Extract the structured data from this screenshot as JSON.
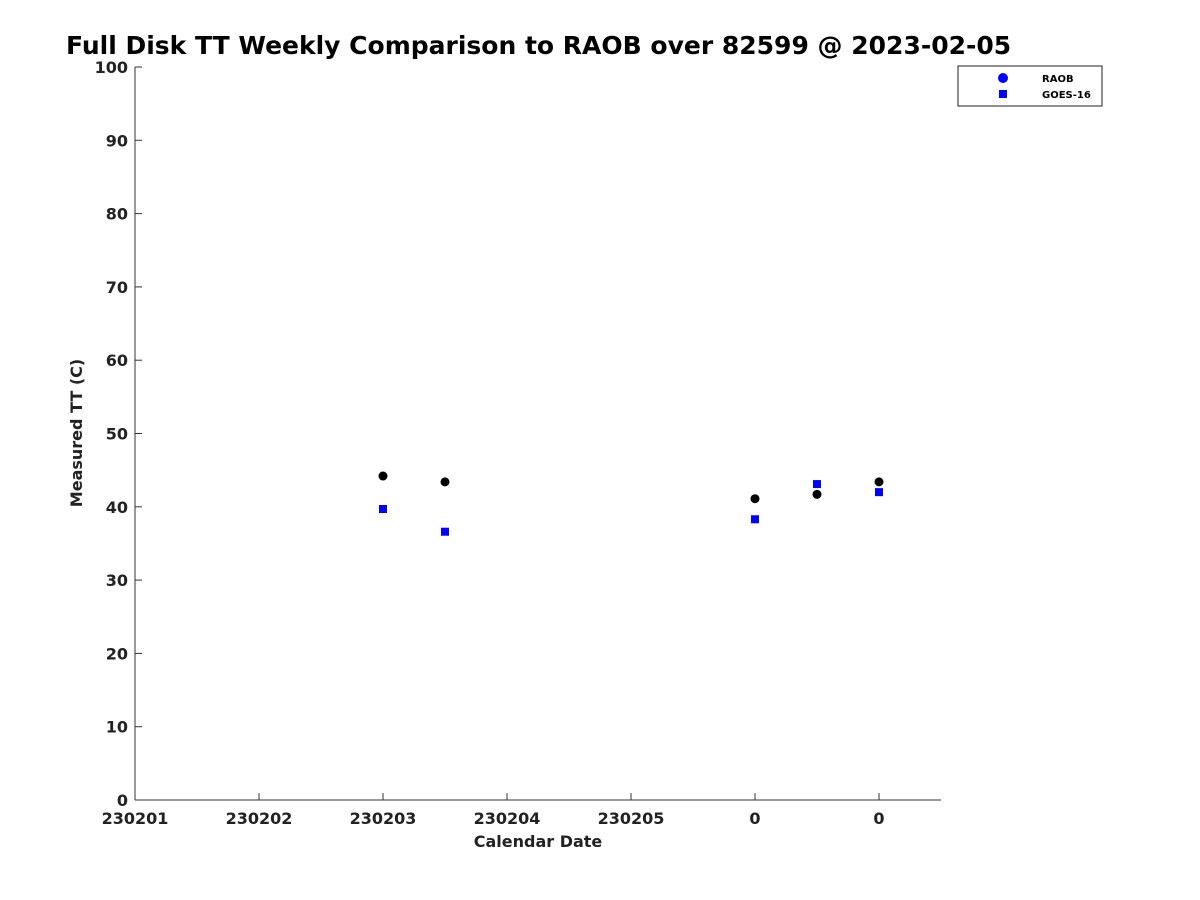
{
  "chart_data": {
    "type": "scatter",
    "title": "Full Disk TT Weekly Comparison to RAOB over 82599 @ 2023-02-05",
    "xlabel": "Calendar Date",
    "ylabel": "Measured TT (C)",
    "ylim": [
      0,
      100
    ],
    "xlim": [
      0,
      6.5
    ],
    "yticks": [
      0,
      10,
      20,
      30,
      40,
      50,
      60,
      70,
      80,
      90,
      100
    ],
    "xticks": [
      {
        "pos": 0,
        "label": "230201"
      },
      {
        "pos": 1,
        "label": "230202"
      },
      {
        "pos": 2,
        "label": "230203"
      },
      {
        "pos": 3,
        "label": "230204"
      },
      {
        "pos": 4,
        "label": "230205"
      },
      {
        "pos": 5,
        "label": "0"
      },
      {
        "pos": 6,
        "label": "0"
      }
    ],
    "grid": false,
    "legend_position": "top-right",
    "series": [
      {
        "name": "RAOB",
        "marker": "circle",
        "legend_color": "#0000ff",
        "color": "#000000",
        "points": [
          {
            "x": 2.0,
            "y": 44.2
          },
          {
            "x": 2.5,
            "y": 43.4
          },
          {
            "x": 5.0,
            "y": 41.1
          },
          {
            "x": 5.5,
            "y": 41.7
          },
          {
            "x": 6.0,
            "y": 43.4
          }
        ]
      },
      {
        "name": "GOES-16",
        "marker": "square",
        "legend_color": "#0000ff",
        "color": "#0000ff",
        "points": [
          {
            "x": 2.0,
            "y": 39.7
          },
          {
            "x": 2.5,
            "y": 36.6
          },
          {
            "x": 5.0,
            "y": 38.3
          },
          {
            "x": 5.5,
            "y": 43.1
          },
          {
            "x": 6.0,
            "y": 42.0
          }
        ]
      }
    ]
  }
}
